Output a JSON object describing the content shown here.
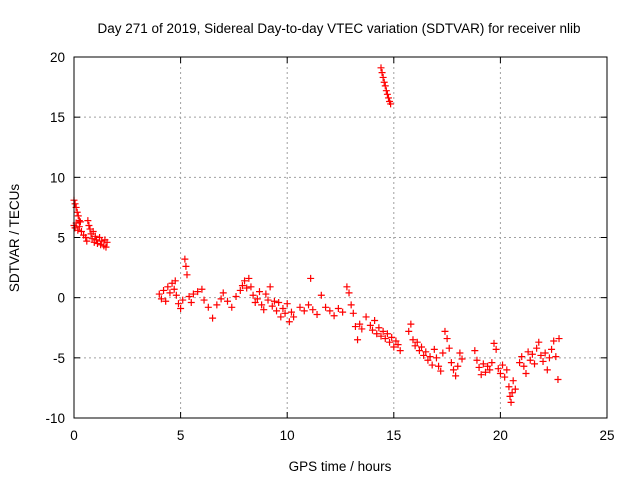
{
  "chart_data": {
    "type": "scatter",
    "title": "Day 271 of 2019, Sidereal Day-to-day VTEC variation (SDTVAR) for receiver nlib",
    "xlabel": "GPS time / hours",
    "ylabel": "SDTVAR / TECUs",
    "xlim": [
      0,
      25
    ],
    "ylim": [
      -10,
      20
    ],
    "xticks": [
      0,
      5,
      10,
      15,
      20,
      25
    ],
    "yticks": [
      -10,
      -5,
      0,
      5,
      10,
      15,
      20
    ],
    "grid": true,
    "marker": "+",
    "color": "#ff0000",
    "series": [
      {
        "name": "SDTVAR",
        "points": [
          [
            0.0,
            8.1
          ],
          [
            0.05,
            7.8
          ],
          [
            0.1,
            7.5
          ],
          [
            0.15,
            7.1
          ],
          [
            0.2,
            6.8
          ],
          [
            0.25,
            6.4
          ],
          [
            0.0,
            6.0
          ],
          [
            0.05,
            5.8
          ],
          [
            0.1,
            6.2
          ],
          [
            0.18,
            5.6
          ],
          [
            0.25,
            5.9
          ],
          [
            0.3,
            6.3
          ],
          [
            0.35,
            5.5
          ],
          [
            0.45,
            5.2
          ],
          [
            0.55,
            5.0
          ],
          [
            0.6,
            4.7
          ],
          [
            0.65,
            6.4
          ],
          [
            0.7,
            6.0
          ],
          [
            0.75,
            5.7
          ],
          [
            0.8,
            5.3
          ],
          [
            0.85,
            4.9
          ],
          [
            0.9,
            5.5
          ],
          [
            0.95,
            4.6
          ],
          [
            1.0,
            5.1
          ],
          [
            1.05,
            4.8
          ],
          [
            1.1,
            4.5
          ],
          [
            1.2,
            5.0
          ],
          [
            1.25,
            4.4
          ],
          [
            1.3,
            4.7
          ],
          [
            1.4,
            4.3
          ],
          [
            1.45,
            4.8
          ],
          [
            1.5,
            4.2
          ],
          [
            1.55,
            4.6
          ],
          [
            4.0,
            0.3
          ],
          [
            4.1,
            -0.1
          ],
          [
            4.2,
            0.6
          ],
          [
            4.3,
            -0.3
          ],
          [
            4.4,
            0.9
          ],
          [
            4.5,
            0.4
          ],
          [
            4.6,
            1.2
          ],
          [
            4.7,
            0.7
          ],
          [
            4.75,
            1.4
          ],
          [
            4.8,
            0.2
          ],
          [
            4.9,
            -0.5
          ],
          [
            5.0,
            -0.9
          ],
          [
            5.1,
            -0.2
          ],
          [
            5.2,
            3.2
          ],
          [
            5.25,
            2.6
          ],
          [
            5.3,
            1.9
          ],
          [
            5.4,
            0.1
          ],
          [
            5.5,
            -0.4
          ],
          [
            5.6,
            0.3
          ],
          [
            5.8,
            0.5
          ],
          [
            6.0,
            0.7
          ],
          [
            6.1,
            -0.2
          ],
          [
            6.3,
            -0.8
          ],
          [
            6.5,
            -1.7
          ],
          [
            6.7,
            -0.6
          ],
          [
            6.9,
            -0.1
          ],
          [
            7.0,
            0.4
          ],
          [
            7.2,
            -0.3
          ],
          [
            7.4,
            -0.8
          ],
          [
            7.6,
            0.1
          ],
          [
            7.8,
            0.6
          ],
          [
            7.9,
            1.0
          ],
          [
            8.0,
            1.4
          ],
          [
            8.1,
            0.8
          ],
          [
            8.2,
            1.6
          ],
          [
            8.3,
            0.9
          ],
          [
            8.4,
            0.2
          ],
          [
            8.5,
            -0.4
          ],
          [
            8.6,
            -0.1
          ],
          [
            8.7,
            0.5
          ],
          [
            8.8,
            -0.6
          ],
          [
            8.9,
            -1.0
          ],
          [
            9.0,
            0.3
          ],
          [
            9.1,
            -0.2
          ],
          [
            9.2,
            0.9
          ],
          [
            9.3,
            -0.7
          ],
          [
            9.4,
            -0.3
          ],
          [
            9.5,
            -1.1
          ],
          [
            9.6,
            -0.4
          ],
          [
            9.7,
            -1.6
          ],
          [
            9.8,
            -0.9
          ],
          [
            9.9,
            -1.3
          ],
          [
            10.0,
            -0.5
          ],
          [
            10.1,
            -2.0
          ],
          [
            10.2,
            -1.2
          ],
          [
            10.3,
            -1.6
          ],
          [
            10.6,
            -0.8
          ],
          [
            10.8,
            -1.1
          ],
          [
            11.0,
            -0.6
          ],
          [
            11.1,
            1.6
          ],
          [
            11.2,
            -1.0
          ],
          [
            11.4,
            -1.4
          ],
          [
            11.6,
            0.2
          ],
          [
            11.8,
            -0.8
          ],
          [
            12.0,
            -1.1
          ],
          [
            12.2,
            -1.5
          ],
          [
            12.4,
            -0.9
          ],
          [
            12.6,
            -1.2
          ],
          [
            12.8,
            0.9
          ],
          [
            12.9,
            0.4
          ],
          [
            13.0,
            -0.6
          ],
          [
            13.1,
            -1.3
          ],
          [
            13.2,
            -2.4
          ],
          [
            13.3,
            -3.5
          ],
          [
            13.4,
            -2.2
          ],
          [
            13.5,
            -2.6
          ],
          [
            13.7,
            -1.6
          ],
          [
            13.9,
            -2.3
          ],
          [
            14.0,
            -2.7
          ],
          [
            14.1,
            -1.9
          ],
          [
            14.2,
            -3.0
          ],
          [
            14.3,
            -2.5
          ],
          [
            14.4,
            -3.2
          ],
          [
            14.5,
            -2.8
          ],
          [
            14.6,
            -3.4
          ],
          [
            14.7,
            -3.0
          ],
          [
            14.8,
            -3.7
          ],
          [
            14.9,
            -3.3
          ],
          [
            15.0,
            -4.1
          ],
          [
            15.1,
            -3.6
          ],
          [
            15.2,
            -3.9
          ],
          [
            15.3,
            -4.4
          ],
          [
            14.4,
            19.1
          ],
          [
            14.45,
            18.7
          ],
          [
            14.5,
            18.3
          ],
          [
            14.55,
            17.9
          ],
          [
            14.6,
            17.6
          ],
          [
            14.65,
            17.2
          ],
          [
            14.7,
            16.9
          ],
          [
            14.75,
            16.6
          ],
          [
            14.8,
            16.3
          ],
          [
            14.85,
            16.1
          ],
          [
            15.7,
            -2.8
          ],
          [
            15.8,
            -2.2
          ],
          [
            15.9,
            -3.5
          ],
          [
            16.0,
            -4.0
          ],
          [
            16.1,
            -3.7
          ],
          [
            16.2,
            -4.4
          ],
          [
            16.3,
            -4.1
          ],
          [
            16.4,
            -4.8
          ],
          [
            16.5,
            -4.5
          ],
          [
            16.6,
            -5.2
          ],
          [
            16.7,
            -4.9
          ],
          [
            16.8,
            -5.6
          ],
          [
            16.9,
            -4.3
          ],
          [
            17.0,
            -5.0
          ],
          [
            17.1,
            -5.7
          ],
          [
            17.2,
            -6.1
          ],
          [
            17.3,
            -4.6
          ],
          [
            17.4,
            -2.8
          ],
          [
            17.5,
            -3.4
          ],
          [
            17.6,
            -4.2
          ],
          [
            17.7,
            -5.4
          ],
          [
            17.8,
            -6.0
          ],
          [
            17.9,
            -6.5
          ],
          [
            18.0,
            -5.7
          ],
          [
            18.1,
            -4.6
          ],
          [
            18.2,
            -5.1
          ],
          [
            18.8,
            -4.4
          ],
          [
            18.9,
            -5.2
          ],
          [
            19.0,
            -5.8
          ],
          [
            19.1,
            -6.4
          ],
          [
            19.2,
            -5.5
          ],
          [
            19.3,
            -6.2
          ],
          [
            19.4,
            -5.7
          ],
          [
            19.5,
            -6.0
          ],
          [
            19.6,
            -5.4
          ],
          [
            19.7,
            -3.8
          ],
          [
            19.8,
            -4.3
          ],
          [
            19.9,
            -5.9
          ],
          [
            20.0,
            -6.3
          ],
          [
            20.1,
            -5.6
          ],
          [
            20.2,
            -6.6
          ],
          [
            20.3,
            -6.0
          ],
          [
            20.4,
            -7.4
          ],
          [
            20.45,
            -8.2
          ],
          [
            20.5,
            -8.7
          ],
          [
            20.55,
            -7.9
          ],
          [
            20.6,
            -6.9
          ],
          [
            20.7,
            -7.6
          ],
          [
            20.9,
            -5.4
          ],
          [
            21.0,
            -4.9
          ],
          [
            21.1,
            -5.7
          ],
          [
            21.2,
            -6.3
          ],
          [
            21.3,
            -4.5
          ],
          [
            21.4,
            -5.2
          ],
          [
            21.5,
            -4.7
          ],
          [
            21.6,
            -5.5
          ],
          [
            21.7,
            -4.2
          ],
          [
            21.8,
            -3.7
          ],
          [
            21.9,
            -4.8
          ],
          [
            22.0,
            -5.3
          ],
          [
            22.1,
            -4.6
          ],
          [
            22.2,
            -6.0
          ],
          [
            22.3,
            -5.0
          ],
          [
            22.4,
            -4.3
          ],
          [
            22.5,
            -3.6
          ],
          [
            22.6,
            -4.9
          ],
          [
            22.7,
            -6.8
          ],
          [
            22.75,
            -3.4
          ]
        ]
      }
    ]
  }
}
